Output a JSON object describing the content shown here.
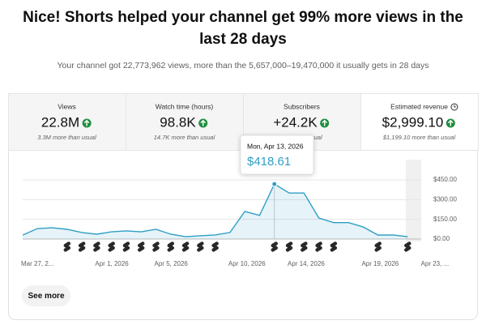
{
  "header": {
    "title_lines": [
      "Nice! Shorts helped your channel get 99% more views in the",
      "last 28 days"
    ],
    "subtitle": "Your channel got 22,773,962 views, more than the 5,657,000–19,470,000 it usually gets in 28 days"
  },
  "metrics": [
    {
      "label": "Views",
      "value": "22.8M",
      "comparison": "3.3M more than usual"
    },
    {
      "label": "Watch time (hours)",
      "value": "98.8K",
      "comparison": "14.7K more than usual"
    },
    {
      "label": "Subscribers",
      "value": "+24.2K",
      "comparison": "than usual"
    },
    {
      "label": "Estimated revenue",
      "value": "$2,999.10",
      "comparison": "$1,199.10 more than usual"
    }
  ],
  "chart_data": {
    "type": "line",
    "categories": [
      "Mar 27, 2...",
      null,
      null,
      null,
      null,
      "Apr 1, 2026",
      null,
      null,
      null,
      "Apr 5, 2026",
      null,
      null,
      null,
      null,
      "Apr 10, 2026",
      null,
      null,
      null,
      "Apr 14, 2026",
      null,
      null,
      null,
      null,
      "Apr 19, 2026",
      null,
      null,
      null,
      "Apr 23, ..."
    ],
    "values": [
      30,
      80,
      86,
      74,
      50,
      37,
      55,
      62,
      55,
      74,
      37,
      18,
      25,
      31,
      50,
      210,
      180,
      418.61,
      350,
      350,
      160,
      125,
      125,
      92,
      30,
      31,
      18,
      null
    ],
    "value_labels": [
      null,
      null,
      null,
      null,
      null,
      null,
      null,
      null,
      null,
      null,
      null,
      null,
      null,
      null,
      null,
      null,
      null,
      "$418.61",
      null,
      null,
      null,
      null,
      null,
      null,
      null,
      null,
      null,
      null
    ],
    "tooltip": {
      "date": "Mon, Apr 13, 2026"
    },
    "color": "#2f9fc4",
    "ylim": [
      0,
      450
    ],
    "yticks": [
      {
        "value": 0,
        "label": "$0.00"
      },
      {
        "value": 150,
        "label": "$150.00"
      },
      {
        "value": 300,
        "label": "$300.00"
      },
      {
        "value": 450,
        "label": "$450.00"
      }
    ],
    "grid": true
  },
  "button": {
    "label": "See more"
  }
}
